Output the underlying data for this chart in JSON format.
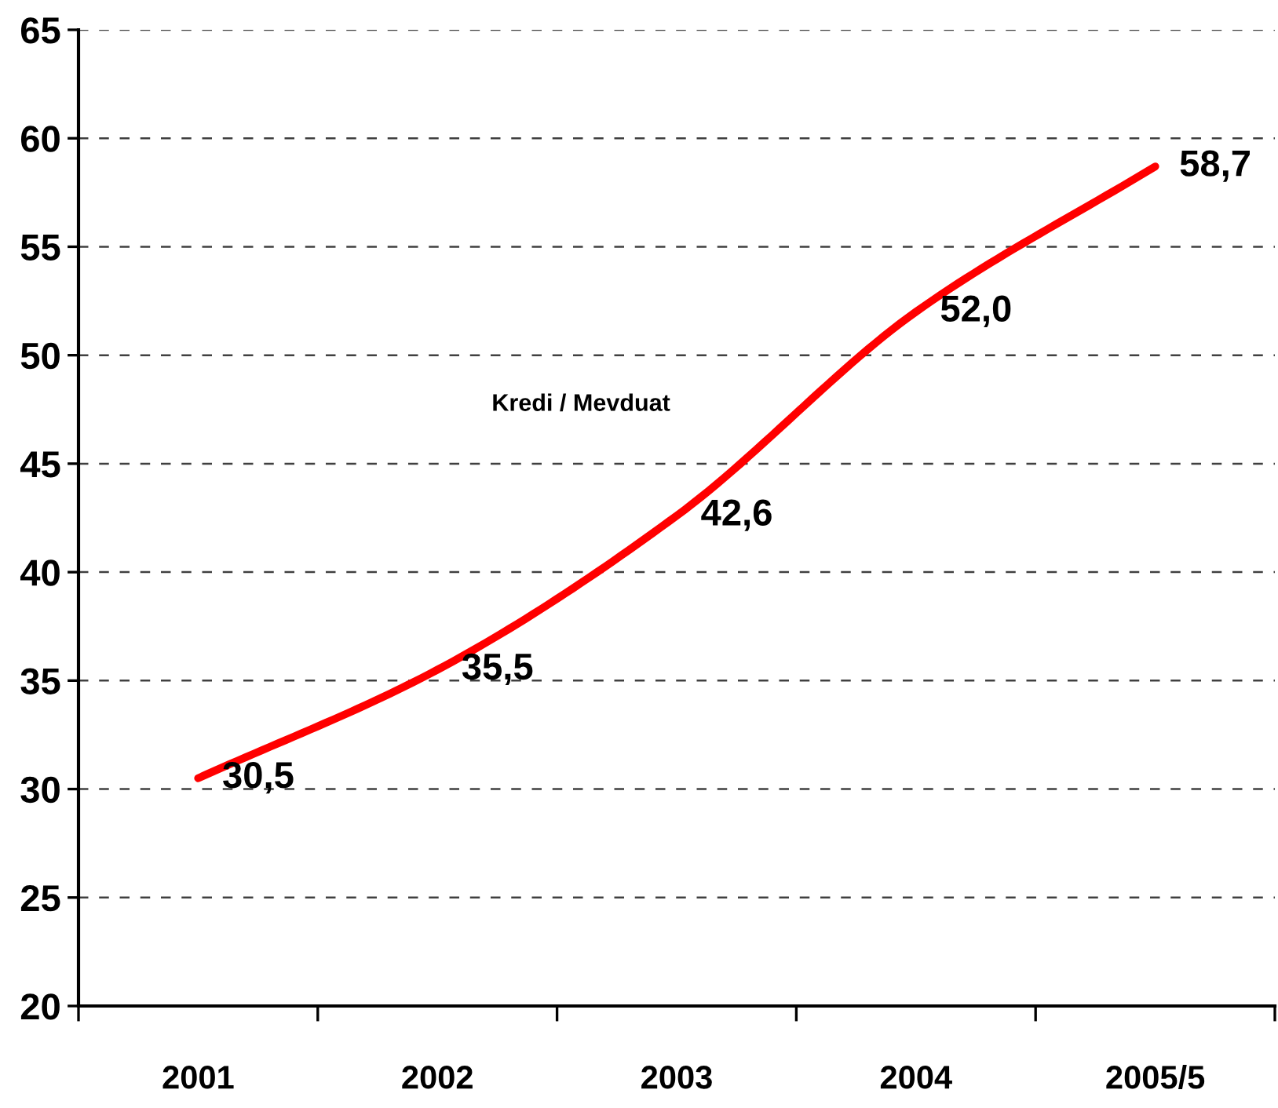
{
  "chart_data": {
    "type": "line",
    "categories": [
      "2001",
      "2002",
      "2003",
      "2004",
      "2005/5"
    ],
    "series": [
      {
        "color": "#ff0000",
        "values": [
          30.5,
          35.5,
          42.6,
          52.0,
          58.7
        ],
        "value_labels": [
          "30,5",
          "35,5",
          "42,6",
          "52,0",
          "58,7"
        ]
      }
    ],
    "ylim": [
      20,
      65
    ],
    "yticks": [
      20,
      25,
      30,
      35,
      40,
      45,
      50,
      55,
      60,
      65
    ],
    "grid": "y",
    "line_style": "solid",
    "annotations": [
      "Kredi / Mevduat"
    ]
  }
}
